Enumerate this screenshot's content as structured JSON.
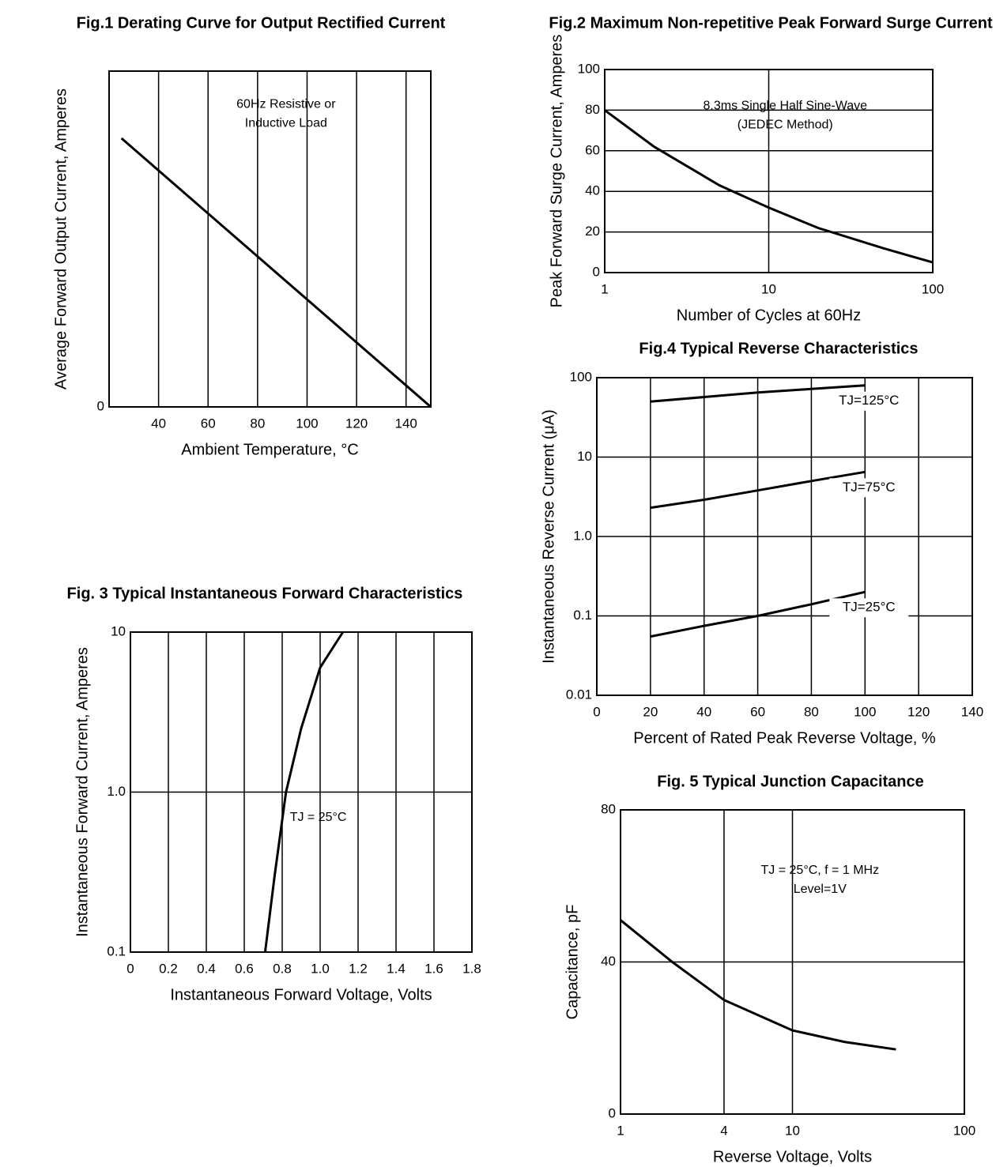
{
  "chart_data": [
    {
      "type": "line",
      "title": "Fig.1 Derating Curve for Output Rectified Current",
      "xlabel": "Ambient Temperature, °C",
      "ylabel": "Average Forward Output Current, Amperes",
      "x": [
        25,
        50,
        75,
        100,
        125,
        150
      ],
      "series": [
        {
          "color": "#000000",
          "values": [
            1.0,
            0.8,
            0.6,
            0.4,
            0.2,
            0
          ]
        }
      ],
      "xlim": [
        20,
        150
      ],
      "ylim": [
        0,
        1.25
      ],
      "xticks": [
        40,
        60,
        80,
        100,
        120,
        140
      ],
      "yticks": [
        0
      ],
      "grid": true,
      "annotations": [
        "60Hz Resistive or",
        "Inductive Load"
      ]
    },
    {
      "type": "line",
      "title": "Fig.2 Maximum Non-repetitive Peak Forward Surge Current",
      "xlabel": "Number of Cycles at 60Hz",
      "ylabel": "Peak Forward Surge Current, Amperes",
      "x": [
        1,
        2,
        5,
        10,
        20,
        50,
        100
      ],
      "series": [
        {
          "color": "#000000",
          "values": [
            80,
            62,
            43,
            32,
            22,
            12,
            5
          ]
        }
      ],
      "xlim": [
        1,
        100
      ],
      "ylim": [
        0,
        100
      ],
      "xticks": [
        1,
        10,
        100
      ],
      "yticks": [
        0,
        20,
        40,
        60,
        80,
        100
      ],
      "xlog": true,
      "grid": true,
      "annotations": [
        "8.3ms Single Half Sine-Wave",
        "(JEDEC Method)"
      ]
    },
    {
      "type": "line",
      "title": "Fig. 3 Typical Instantaneous Forward Characteristics",
      "xlabel": "Instantaneous Forward Voltage, Volts",
      "ylabel": "Instantaneous Forward Current, Amperes",
      "x": [
        0.71,
        0.76,
        0.82,
        0.9,
        1.0,
        1.12
      ],
      "series": [
        {
          "color": "#000000",
          "values": [
            0.1,
            0.3,
            1,
            2.5,
            6,
            10
          ]
        }
      ],
      "xlim": [
        0,
        1.8
      ],
      "ylim": [
        0.1,
        10
      ],
      "xticks": [
        0,
        0.2,
        0.4,
        0.6,
        0.8,
        {
          "value": 1,
          "label": "1.0"
        },
        1.2,
        1.4,
        1.6,
        1.8
      ],
      "yticks": [
        0.1,
        {
          "value": 1,
          "label": "1.0"
        },
        10
      ],
      "ylog": true,
      "grid": true,
      "annotations": [
        "TJ = 25°C"
      ]
    },
    {
      "type": "line",
      "title": "Fig.4 Typical Reverse Characteristics",
      "xlabel": "Percent of Rated Peak Reverse Voltage, %",
      "ylabel": "Instantaneous Reverse Current (μA)",
      "x": [
        20,
        40,
        60,
        80,
        100
      ],
      "series": [
        {
          "name": "TJ=125°C",
          "color": "#000000",
          "values": [
            50,
            57,
            65,
            72,
            80
          ]
        },
        {
          "name": "TJ=75°C",
          "color": "#000000",
          "values": [
            2.3,
            2.9,
            3.8,
            5,
            6.5
          ]
        },
        {
          "name": "TJ=25°C",
          "color": "#000000",
          "values": [
            0.055,
            0.075,
            0.1,
            0.14,
            0.2
          ]
        }
      ],
      "xlim": [
        0,
        140
      ],
      "ylim": [
        0.01,
        100
      ],
      "xticks": [
        0,
        20,
        40,
        60,
        80,
        100,
        120,
        140
      ],
      "yticks": [
        0.01,
        0.1,
        {
          "value": 1,
          "label": "1.0"
        },
        10,
        100
      ],
      "ylog": true,
      "grid": true
    },
    {
      "type": "line",
      "title": "Fig. 5 Typical Junction Capacitance",
      "xlabel": "Reverse Voltage, Volts",
      "ylabel": "Capacitance, pF",
      "x": [
        1,
        2,
        4,
        10,
        20,
        40
      ],
      "series": [
        {
          "color": "#000000",
          "values": [
            51,
            40,
            30,
            22,
            19,
            17
          ]
        }
      ],
      "xlim": [
        1,
        100
      ],
      "ylim": [
        0,
        80
      ],
      "xticks": [
        1,
        4,
        10,
        100
      ],
      "yticks": [
        0,
        40,
        80
      ],
      "xlog": true,
      "grid": true,
      "annotations": [
        "TJ = 25°C, f = 1 MHz",
        "Level=1V"
      ]
    }
  ]
}
